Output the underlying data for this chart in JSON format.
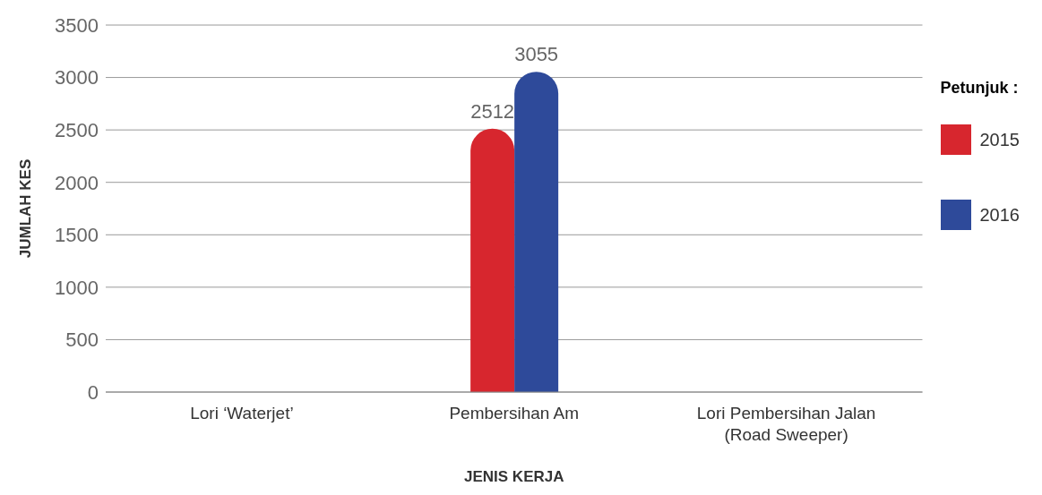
{
  "chart_data": {
    "type": "bar",
    "xlabel": "JENIS KERJA",
    "ylabel": "JUMLAH KES",
    "legend_title": "Petunjuk :",
    "categories": [
      "Lori ‘Waterjet’",
      "Pembersihan Am",
      "Lori Pembersihan Jalan (Road Sweeper)"
    ],
    "series": [
      {
        "name": "2015",
        "color": "#d7262e",
        "values": [
          0,
          2512,
          0
        ],
        "value_labels": [
          null,
          "2512",
          null
        ]
      },
      {
        "name": "2016",
        "color": "#2e4a9a",
        "values": [
          0,
          3055,
          0
        ],
        "value_labels": [
          null,
          "3055",
          null
        ]
      }
    ],
    "ylim": [
      0,
      3500
    ],
    "yticks": [
      0,
      500,
      1000,
      1500,
      2000,
      2500,
      3000,
      3500
    ],
    "grid": "y",
    "legend": "right"
  }
}
